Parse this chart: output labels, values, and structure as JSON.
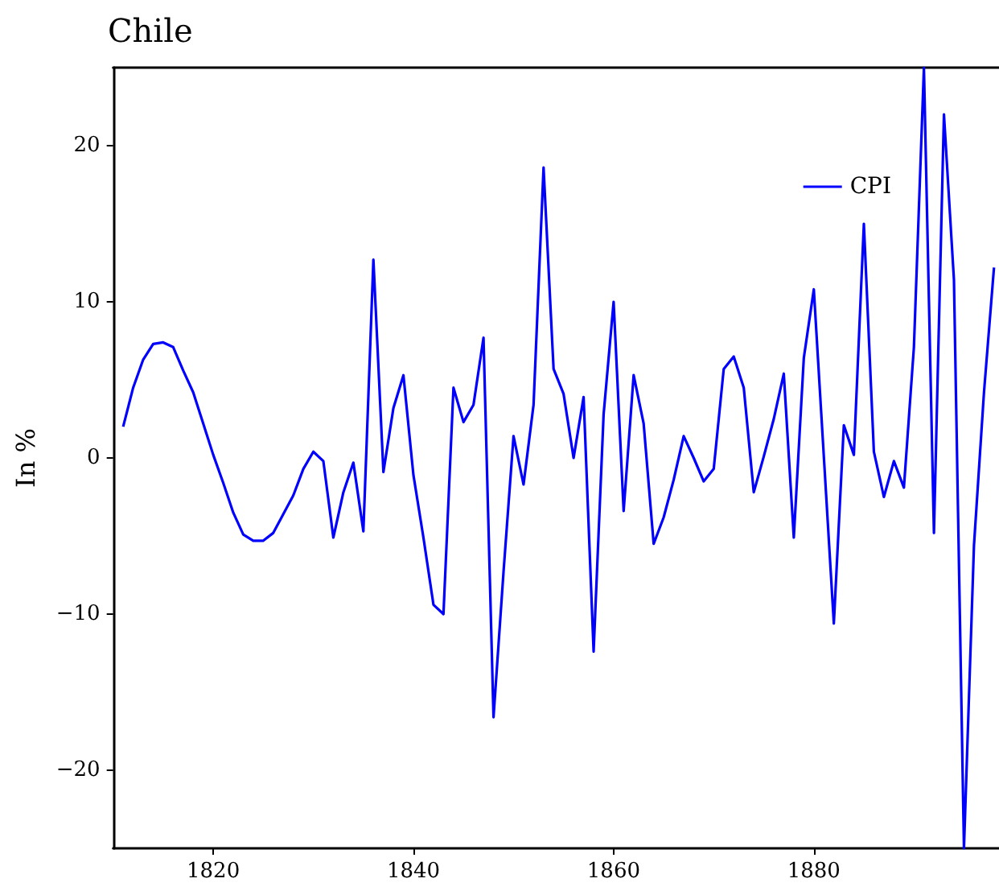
{
  "chart_data": {
    "type": "line",
    "title": "Chile",
    "ylabel": "In %",
    "x": [
      1811,
      1812,
      1813,
      1814,
      1815,
      1816,
      1817,
      1818,
      1819,
      1820,
      1821,
      1822,
      1823,
      1824,
      1825,
      1826,
      1827,
      1828,
      1829,
      1830,
      1831,
      1832,
      1833,
      1834,
      1835,
      1836,
      1837,
      1838,
      1839,
      1840,
      1841,
      1842,
      1843,
      1844,
      1845,
      1846,
      1847,
      1848,
      1849,
      1850,
      1851,
      1852,
      1853,
      1854,
      1855,
      1856,
      1857,
      1858,
      1859,
      1860,
      1861,
      1862,
      1863,
      1864,
      1865,
      1866,
      1867,
      1868,
      1869,
      1870,
      1871,
      1872,
      1873,
      1874,
      1875,
      1876,
      1877,
      1878,
      1879,
      1880,
      1881,
      1882,
      1883,
      1884,
      1885,
      1886,
      1887,
      1888,
      1889,
      1890,
      1891,
      1892,
      1893,
      1894,
      1895,
      1896,
      1897,
      1898
    ],
    "series": [
      {
        "name": "CPI",
        "color": "#0000ff",
        "values": [
          2.0,
          4.5,
          6.3,
          7.3,
          7.4,
          7.1,
          5.6,
          4.2,
          2.2,
          0.2,
          -1.6,
          -3.5,
          -4.9,
          -5.3,
          -5.3,
          -4.8,
          -3.6,
          -2.4,
          -0.7,
          0.4,
          -0.2,
          -5.1,
          -2.2,
          -0.3,
          -4.7,
          12.7,
          -0.9,
          3.2,
          5.3,
          -1.1,
          -5.1,
          -9.4,
          -10.0,
          4.5,
          2.3,
          3.4,
          7.7,
          -16.6,
          -7.3,
          1.4,
          -1.7,
          3.4,
          18.6,
          5.7,
          4.1,
          0.0,
          3.9,
          -12.4,
          2.8,
          10.0,
          -3.4,
          5.3,
          2.2,
          -5.5,
          -3.8,
          -1.4,
          1.4,
          0.0,
          -1.5,
          -0.7,
          5.7,
          6.5,
          4.5,
          -2.2,
          0.1,
          2.5,
          5.4,
          -5.1,
          6.4,
          10.8,
          0.1,
          -10.6,
          2.1,
          0.2,
          15.0,
          0.4,
          -2.5,
          -0.2,
          -1.9,
          7.1,
          25,
          -4.8,
          22.0,
          11.4,
          -25,
          -5.6,
          4.2,
          12.2
        ]
      }
    ],
    "xlim": [
      1810,
      1898.5
    ],
    "xticks": [
      1820,
      1840,
      1860,
      1880
    ],
    "ylim": [
      -25,
      25
    ],
    "yticks": [
      -20,
      -10,
      0,
      10,
      20
    ],
    "grid": false,
    "legend": "top right"
  }
}
